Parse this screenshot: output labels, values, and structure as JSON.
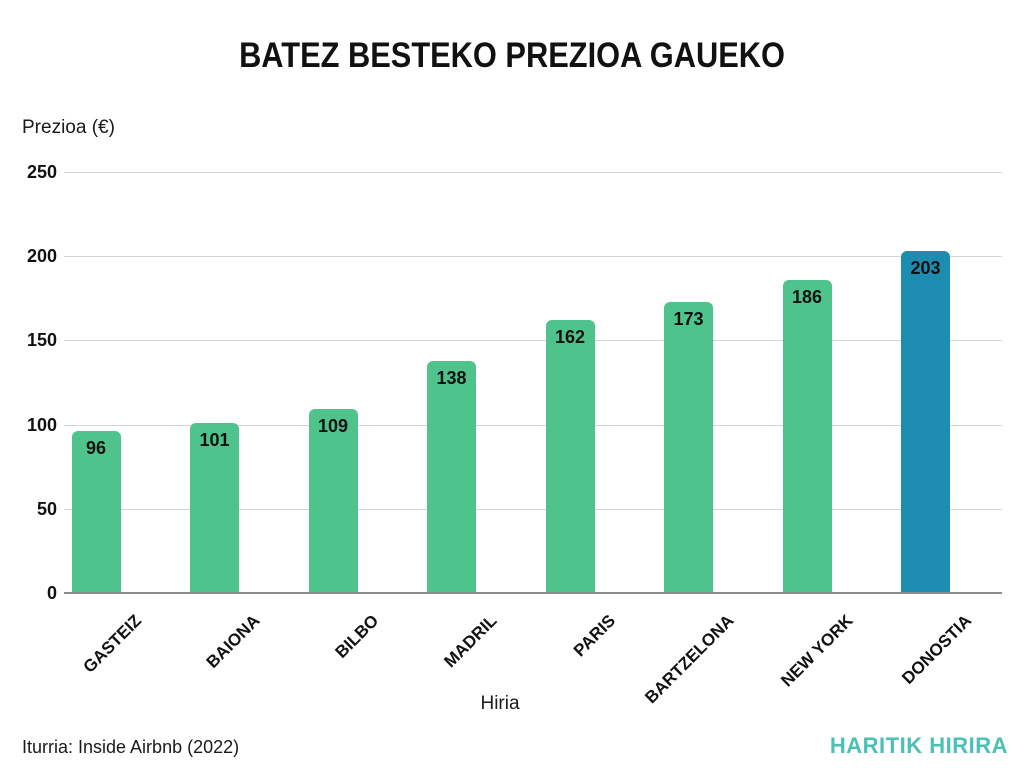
{
  "page": {
    "title": "BATEZ BESTEKO PREZIOA GAUEKO",
    "source_note": "Iturria: Inside Airbnb (2022)",
    "brand": "HARITIK HIRIRA"
  },
  "colors": {
    "bar_default": "#4fc38c",
    "bar_highlight": "#1d8cb1",
    "brand_teal": "#4bc0b5",
    "gridline": "#d4d4d4",
    "axis_line": "#8c8c8c",
    "text": "#111111"
  },
  "chart_data": {
    "type": "bar",
    "title": "BATEZ BESTEKO PREZIOA GAUEKO",
    "categories": [
      "GASTEIZ",
      "BAIONA",
      "BILBO",
      "MADRIL",
      "PARIS",
      "BARTZELONA",
      "NEW YORK",
      "DONOSTIA"
    ],
    "values": [
      96,
      101,
      109,
      138,
      162,
      173,
      186,
      203
    ],
    "xlabel": "Hiria",
    "ylabel": "Prezioa (€)",
    "ylim": [
      0,
      250
    ],
    "yticks": [
      0,
      50,
      100,
      150,
      200,
      250
    ],
    "grid": true,
    "legend": false,
    "highlight_category": "DONOSTIA",
    "annotation_source": "Iturria: Inside Airbnb (2022)"
  }
}
